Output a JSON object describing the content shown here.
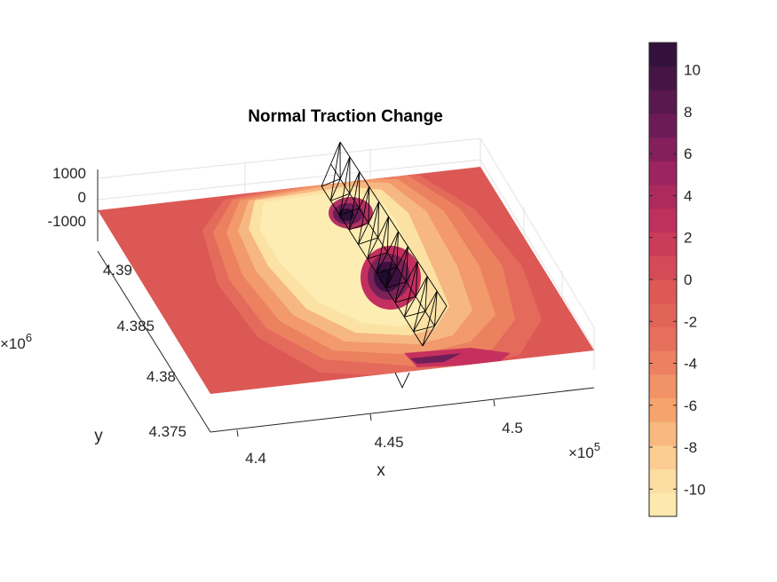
{
  "chart_data": {
    "type": "heatmap",
    "title": "Normal Traction Change",
    "xlabel": "x",
    "ylabel": "y",
    "x_exponent_label": "×10",
    "x_exponent": "5",
    "y_exponent_label": "×10",
    "y_exponent": "6",
    "x_ticks": [
      "4.4",
      "4.45",
      "4.5"
    ],
    "y_ticks": [
      "4.375",
      "4.38",
      "4.385",
      "4.39"
    ],
    "z_ticks": [
      "1000",
      "0",
      "-1000"
    ],
    "colorbar": {
      "ticks": [
        "10",
        "8",
        "6",
        "4",
        "2",
        "0",
        "-2",
        "-4",
        "-6",
        "-8",
        "-10"
      ],
      "tick_values": [
        10,
        8,
        6,
        4,
        2,
        0,
        -2,
        -4,
        -6,
        -8,
        -10
      ],
      "range": [
        -11.3,
        11.3
      ],
      "levels": 20
    },
    "grid": true,
    "legend": "colorbar-right",
    "colors": {
      "positive_max": "#2b0f37",
      "zero": "#dc5855",
      "negative_max": "#fdeaad"
    }
  }
}
